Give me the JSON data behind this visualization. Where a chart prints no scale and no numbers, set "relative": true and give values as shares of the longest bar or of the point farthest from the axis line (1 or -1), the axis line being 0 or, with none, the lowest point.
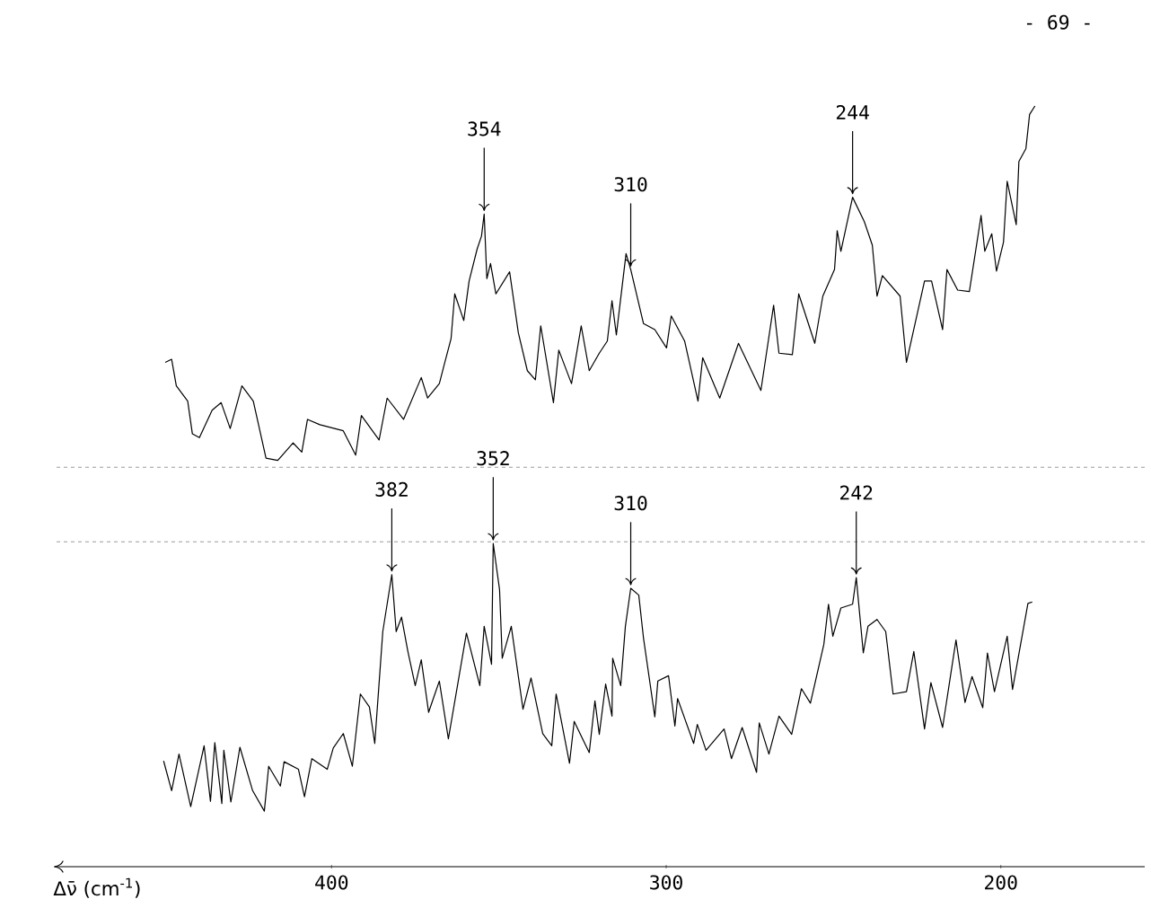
{
  "chart_data": {
    "type": "line",
    "relative": true,
    "xlabel": "Δν̄ (cm$^{-1}$)",
    "xlim": [
      483,
      157
    ],
    "xticks": [
      400,
      300,
      200
    ],
    "line_style": "solid",
    "annotations": [
      {
        "text": "354",
        "x": 354.4,
        "y": 0.858
      },
      {
        "text": "310",
        "x": 310.6,
        "y": 0.785
      },
      {
        "text": "244",
        "x": 244.3,
        "y": 0.88
      },
      {
        "text": "382",
        "x": 382.0,
        "y": 0.384
      },
      {
        "text": "352",
        "x": 351.7,
        "y": 0.425
      },
      {
        "text": "310",
        "x": 310.6,
        "y": 0.366
      },
      {
        "text": "242",
        "x": 243.2,
        "y": 0.38
      },
      "- 69 -"
    ],
    "ref_lines": [
      {
        "axis": "y",
        "value": 0.525,
        "color": "#9a9a9a",
        "line_style": "dashed"
      },
      {
        "axis": "y",
        "value": 0.427,
        "color": "#9a9a9a",
        "line_style": "dashed"
      }
    ],
    "series": [
      {
        "color": "#000000",
        "x": [
          449.7,
          447.8,
          446.4,
          443.0,
          441.6,
          439.5,
          435.7,
          433.0,
          430.3,
          426.8,
          423.4,
          419.6,
          416.1,
          411.5,
          408.9,
          407.2,
          403.5,
          396.5,
          392.8,
          391.1,
          385.8,
          383.4,
          378.5,
          373.2,
          371.3,
          367.8,
          366.4,
          364.3,
          363.2,
          360.5,
          358.9,
          356.5,
          355.2,
          354.4,
          353.6,
          352.5,
          350.9,
          346.8,
          344.2,
          341.5,
          339.1,
          337.5,
          333.7,
          332.1,
          328.3,
          325.4,
          323.0,
          320.0,
          317.6,
          316.2,
          314.9,
          312.0,
          310.6,
          306.8,
          303.4,
          299.9,
          298.5,
          294.5,
          290.5,
          289.1,
          284.0,
          278.4,
          271.7,
          267.9,
          266.3,
          262.3,
          260.4,
          255.6,
          253.2,
          249.7,
          248.9,
          247.8,
          244.3,
          240.8,
          238.4,
          237.0,
          235.4,
          230.1,
          228.2,
          222.8,
          220.7,
          217.4,
          216.1,
          212.9,
          209.4,
          205.9,
          204.8,
          202.7,
          201.3,
          199.2,
          198.1,
          195.4,
          194.6,
          192.5,
          191.4,
          189.8
        ],
        "values": [
          0.663,
          0.667,
          0.632,
          0.612,
          0.569,
          0.564,
          0.6,
          0.61,
          0.576,
          0.632,
          0.612,
          0.537,
          0.534,
          0.557,
          0.545,
          0.588,
          0.581,
          0.573,
          0.541,
          0.593,
          0.561,
          0.616,
          0.588,
          0.643,
          0.616,
          0.635,
          0.659,
          0.694,
          0.753,
          0.718,
          0.77,
          0.812,
          0.829,
          0.858,
          0.773,
          0.793,
          0.753,
          0.782,
          0.702,
          0.652,
          0.64,
          0.711,
          0.61,
          0.679,
          0.635,
          0.711,
          0.652,
          0.675,
          0.691,
          0.744,
          0.699,
          0.806,
          0.785,
          0.714,
          0.706,
          0.682,
          0.724,
          0.691,
          0.612,
          0.669,
          0.616,
          0.688,
          0.626,
          0.738,
          0.675,
          0.673,
          0.753,
          0.688,
          0.75,
          0.785,
          0.836,
          0.809,
          0.88,
          0.848,
          0.817,
          0.75,
          0.777,
          0.75,
          0.663,
          0.77,
          0.77,
          0.706,
          0.785,
          0.758,
          0.756,
          0.856,
          0.809,
          0.832,
          0.783,
          0.821,
          0.901,
          0.844,
          0.927,
          0.944,
          0.989,
          1.0
        ]
      },
      {
        "color": "#000000",
        "x": [
          450.2,
          447.8,
          445.6,
          442.1,
          438.1,
          436.2,
          434.9,
          432.8,
          432.2,
          430.1,
          427.4,
          423.6,
          420.1,
          418.8,
          415.3,
          414.2,
          409.9,
          408.1,
          405.9,
          401.3,
          399.5,
          396.5,
          393.8,
          391.4,
          388.7,
          387.1,
          384.7,
          382.0,
          380.7,
          379.1,
          377.2,
          375.0,
          373.2,
          371.0,
          367.8,
          365.1,
          359.7,
          355.7,
          354.4,
          352.2,
          351.7,
          349.8,
          349.0,
          346.3,
          342.8,
          340.4,
          336.9,
          334.2,
          332.9,
          328.9,
          327.5,
          323.0,
          321.3,
          320.0,
          318.1,
          316.2,
          316.0,
          313.6,
          312.2,
          310.6,
          308.2,
          306.8,
          303.4,
          302.5,
          299.3,
          297.4,
          296.6,
          291.8,
          290.7,
          288.1,
          282.7,
          280.5,
          277.3,
          273.0,
          272.2,
          269.3,
          266.3,
          262.5,
          259.6,
          256.9,
          252.9,
          251.5,
          250.2,
          247.8,
          244.3,
          243.2,
          241.1,
          239.7,
          237.0,
          234.4,
          232.2,
          228.2,
          226.0,
          222.8,
          220.9,
          217.4,
          213.4,
          210.7,
          208.6,
          205.4,
          204.0,
          201.9,
          198.1,
          196.5,
          191.9,
          190.6
        ],
        "values": [
          0.139,
          0.1,
          0.148,
          0.079,
          0.159,
          0.086,
          0.163,
          0.083,
          0.153,
          0.085,
          0.157,
          0.1,
          0.073,
          0.132,
          0.106,
          0.138,
          0.128,
          0.092,
          0.142,
          0.128,
          0.156,
          0.175,
          0.132,
          0.227,
          0.21,
          0.162,
          0.309,
          0.384,
          0.309,
          0.328,
          0.283,
          0.238,
          0.272,
          0.203,
          0.244,
          0.168,
          0.307,
          0.238,
          0.316,
          0.266,
          0.425,
          0.364,
          0.274,
          0.316,
          0.207,
          0.248,
          0.175,
          0.159,
          0.227,
          0.136,
          0.191,
          0.15,
          0.218,
          0.174,
          0.24,
          0.198,
          0.274,
          0.238,
          0.316,
          0.366,
          0.357,
          0.301,
          0.197,
          0.244,
          0.251,
          0.185,
          0.221,
          0.162,
          0.187,
          0.153,
          0.181,
          0.142,
          0.183,
          0.124,
          0.189,
          0.148,
          0.198,
          0.174,
          0.234,
          0.215,
          0.292,
          0.345,
          0.303,
          0.34,
          0.345,
          0.38,
          0.281,
          0.316,
          0.325,
          0.309,
          0.227,
          0.23,
          0.283,
          0.181,
          0.242,
          0.183,
          0.298,
          0.216,
          0.25,
          0.209,
          0.281,
          0.23,
          0.303,
          0.233,
          0.346,
          0.348
        ]
      }
    ]
  }
}
